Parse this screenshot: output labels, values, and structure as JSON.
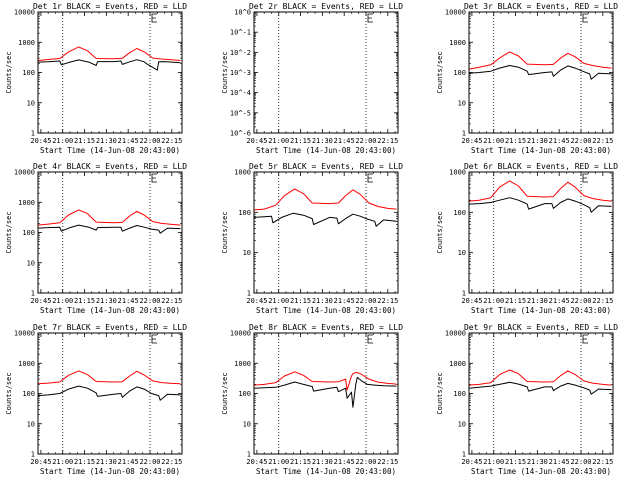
{
  "x_tick_labels": [
    "20:45",
    "21:00",
    "21:15",
    "21:30",
    "21:45",
    "22:00",
    "22:15"
  ],
  "x_axis_label": "Start Time (14-Jun-08 20:43:00)",
  "chart_data": [
    {
      "type": "line",
      "title": "Det 1r BLACK = Events, RED = LLD",
      "xlabel": "Start Time (14-Jun-08 20:43:00)",
      "ylabel": "Counts/sec",
      "yscale": "log",
      "ylim": [
        1,
        10000
      ],
      "y_tick_labels": [
        "1",
        "10",
        "100",
        "1000",
        "10000"
      ],
      "x_time_range": [
        "20:43",
        "22:22"
      ],
      "x_tick_labels": [
        "20:45",
        "21:00",
        "21:15",
        "21:30",
        "21:45",
        "22:00",
        "22:15"
      ],
      "series": [
        {
          "name": "BLACK = Events",
          "color": "#000000",
          "x": [
            "20:43",
            "20:50",
            "20:58",
            "20:59",
            "21:05",
            "21:11",
            "21:18",
            "21:23",
            "21:24",
            "21:35",
            "21:40",
            "21:41",
            "21:46",
            "21:51",
            "21:56",
            "21:58",
            "22:05",
            "22:06",
            "22:10",
            "22:15",
            "22:21"
          ],
          "y": [
            220,
            225,
            240,
            180,
            220,
            260,
            220,
            170,
            230,
            230,
            240,
            185,
            225,
            265,
            225,
            190,
            120,
            225,
            230,
            220,
            210
          ]
        },
        {
          "name": "RED = LLD",
          "color": "#ff0000",
          "x": [
            "20:43",
            "20:50",
            "20:58",
            "21:04",
            "21:11",
            "21:17",
            "21:23",
            "21:35",
            "21:41",
            "21:46",
            "21:51",
            "21:56",
            "22:02",
            "22:08",
            "22:15",
            "22:21"
          ],
          "y": [
            250,
            270,
            290,
            480,
            700,
            520,
            290,
            285,
            295,
            450,
            620,
            480,
            300,
            280,
            265,
            250
          ]
        }
      ]
    },
    {
      "type": "line",
      "title": "Det 2r BLACK = Events, RED = LLD",
      "xlabel": "Start Time (14-Jun-08 20:43:00)",
      "ylabel": "Counts/sec",
      "yscale": "log",
      "ylim": [
        1e-06,
        1
      ],
      "y_tick_labels": [
        "10^-6",
        "10^-5",
        "10^-4",
        "10^-3",
        "10^-2",
        "10^-1",
        "10^0"
      ],
      "x_time_range": [
        "20:43",
        "22:22"
      ],
      "x_tick_labels": [
        "20:45",
        "21:00",
        "21:15",
        "21:30",
        "21:45",
        "22:00",
        "22:15"
      ],
      "series": []
    },
    {
      "type": "line",
      "title": "Det 3r BLACK = Events, RED = LLD",
      "xlabel": "Start Time (14-Jun-08 20:43:00)",
      "ylabel": "Counts/sec",
      "yscale": "log",
      "ylim": [
        1,
        10000
      ],
      "y_tick_labels": [
        "1",
        "10",
        "100",
        "1000",
        "10000"
      ],
      "x_time_range": [
        "20:43",
        "22:22"
      ],
      "x_tick_labels": [
        "20:45",
        "21:00",
        "21:15",
        "21:30",
        "21:45",
        "22:00",
        "22:15"
      ],
      "series": [
        {
          "name": "BLACK = Events",
          "color": "#000000",
          "x": [
            "20:43",
            "20:50",
            "20:58",
            "21:04",
            "21:11",
            "21:17",
            "21:23",
            "21:24",
            "21:35",
            "21:40",
            "21:41",
            "21:46",
            "21:51",
            "21:56",
            "22:01",
            "22:06",
            "22:07",
            "22:12",
            "22:21"
          ],
          "y": [
            95,
            100,
            110,
            140,
            170,
            150,
            110,
            85,
            100,
            105,
            75,
            120,
            165,
            140,
            110,
            90,
            60,
            95,
            90
          ]
        },
        {
          "name": "RED = LLD",
          "color": "#ff0000",
          "x": [
            "20:43",
            "20:50",
            "20:58",
            "21:04",
            "21:11",
            "21:17",
            "21:23",
            "21:35",
            "21:41",
            "21:46",
            "21:51",
            "21:56",
            "22:02",
            "22:08",
            "22:15",
            "22:21"
          ],
          "y": [
            130,
            150,
            180,
            300,
            480,
            350,
            190,
            180,
            185,
            300,
            430,
            330,
            200,
            170,
            150,
            140
          ]
        }
      ]
    },
    {
      "type": "line",
      "title": "Det 4r BLACK = Events, RED = LLD",
      "xlabel": "Start Time (14-Jun-08 20:43:00)",
      "ylabel": "Counts/sec",
      "yscale": "log",
      "ylim": [
        1,
        10000
      ],
      "y_tick_labels": [
        "1",
        "10",
        "100",
        "1000",
        "10000"
      ],
      "x_time_range": [
        "20:43",
        "22:22"
      ],
      "x_tick_labels": [
        "20:45",
        "21:00",
        "21:15",
        "21:30",
        "21:45",
        "22:00",
        "22:15"
      ],
      "series": [
        {
          "name": "BLACK = Events",
          "color": "#000000",
          "x": [
            "20:43",
            "20:50",
            "20:58",
            "20:59",
            "21:05",
            "21:11",
            "21:18",
            "21:23",
            "21:24",
            "21:35",
            "21:40",
            "21:41",
            "21:46",
            "21:51",
            "21:56",
            "22:01",
            "22:06",
            "22:07",
            "22:12",
            "22:21"
          ],
          "y": [
            140,
            145,
            150,
            110,
            145,
            175,
            150,
            120,
            145,
            150,
            150,
            110,
            140,
            170,
            150,
            130,
            120,
            95,
            140,
            135
          ]
        },
        {
          "name": "RED = LLD",
          "color": "#ff0000",
          "x": [
            "20:43",
            "20:50",
            "20:58",
            "21:04",
            "21:11",
            "21:17",
            "21:23",
            "21:35",
            "21:41",
            "21:46",
            "21:51",
            "21:56",
            "22:02",
            "22:08",
            "22:15",
            "22:21"
          ],
          "y": [
            175,
            190,
            210,
            380,
            560,
            420,
            220,
            210,
            215,
            350,
            500,
            380,
            230,
            200,
            185,
            175
          ]
        }
      ]
    },
    {
      "type": "line",
      "title": "Det 5r BLACK = Events, RED = LLD",
      "xlabel": "Start Time (14-Jun-08 20:43:00)",
      "ylabel": "Counts/sec",
      "yscale": "log",
      "ylim": [
        1,
        1000
      ],
      "y_tick_labels": [
        "1",
        "10",
        "100",
        "1000"
      ],
      "x_time_range": [
        "20:43",
        "22:22"
      ],
      "x_tick_labels": [
        "20:45",
        "21:00",
        "21:15",
        "21:30",
        "21:45",
        "22:00",
        "22:15"
      ],
      "series": [
        {
          "name": "BLACK = Events",
          "color": "#000000",
          "x": [
            "20:43",
            "20:50",
            "20:55",
            "20:56",
            "21:02",
            "21:10",
            "21:17",
            "21:23",
            "21:24",
            "21:35",
            "21:40",
            "21:41",
            "21:46",
            "21:51",
            "21:56",
            "22:01",
            "22:06",
            "22:07",
            "22:12",
            "22:21"
          ],
          "y": [
            75,
            78,
            80,
            55,
            75,
            95,
            85,
            70,
            50,
            75,
            72,
            52,
            70,
            90,
            80,
            68,
            60,
            45,
            65,
            60
          ]
        },
        {
          "name": "RED = LLD",
          "color": "#ff0000",
          "x": [
            "20:43",
            "20:50",
            "20:58",
            "21:04",
            "21:11",
            "21:17",
            "21:23",
            "21:35",
            "21:41",
            "21:46",
            "21:51",
            "21:56",
            "22:02",
            "22:08",
            "22:15",
            "22:21"
          ],
          "y": [
            115,
            120,
            150,
            260,
            380,
            290,
            170,
            165,
            170,
            260,
            360,
            280,
            170,
            140,
            125,
            120
          ]
        }
      ]
    },
    {
      "type": "line",
      "title": "Det 6r BLACK = Events, RED = LLD",
      "xlabel": "Start Time (14-Jun-08 20:43:00)",
      "ylabel": "Counts/sec",
      "yscale": "log",
      "ylim": [
        1,
        1000
      ],
      "y_tick_labels": [
        "1",
        "10",
        "100",
        "1000"
      ],
      "x_time_range": [
        "20:43",
        "22:22"
      ],
      "x_tick_labels": [
        "20:45",
        "21:00",
        "21:15",
        "21:30",
        "21:45",
        "22:00",
        "22:15"
      ],
      "series": [
        {
          "name": "BLACK = Events",
          "color": "#000000",
          "x": [
            "20:43",
            "20:50",
            "20:58",
            "21:04",
            "21:11",
            "21:17",
            "21:23",
            "21:24",
            "21:35",
            "21:40",
            "21:41",
            "21:46",
            "21:51",
            "21:56",
            "22:01",
            "22:06",
            "22:07",
            "22:12",
            "22:21"
          ],
          "y": [
            160,
            165,
            175,
            200,
            230,
            200,
            160,
            120,
            165,
            165,
            125,
            175,
            215,
            190,
            160,
            130,
            100,
            145,
            140
          ]
        },
        {
          "name": "RED = LLD",
          "color": "#ff0000",
          "x": [
            "20:43",
            "20:50",
            "20:58",
            "21:04",
            "21:11",
            "21:17",
            "21:23",
            "21:35",
            "21:41",
            "21:46",
            "21:51",
            "21:56",
            "22:02",
            "22:08",
            "22:15",
            "22:21"
          ],
          "y": [
            190,
            200,
            230,
            420,
            600,
            450,
            250,
            240,
            245,
            390,
            560,
            420,
            260,
            220,
            200,
            190
          ]
        }
      ]
    },
    {
      "type": "line",
      "title": "Det 7r BLACK = Events, RED = LLD",
      "xlabel": "Start Time (14-Jun-08 20:43:00)",
      "ylabel": "Counts/sec",
      "yscale": "log",
      "ylim": [
        1,
        10000
      ],
      "y_tick_labels": [
        "1",
        "10",
        "100",
        "1000",
        "10000"
      ],
      "x_time_range": [
        "20:43",
        "22:22"
      ],
      "x_tick_labels": [
        "20:45",
        "21:00",
        "21:15",
        "21:30",
        "21:45",
        "22:00",
        "22:15"
      ],
      "series": [
        {
          "name": "BLACK = Events",
          "color": "#000000",
          "x": [
            "20:43",
            "20:50",
            "20:58",
            "21:04",
            "21:11",
            "21:17",
            "21:23",
            "21:24",
            "21:35",
            "21:40",
            "21:41",
            "21:46",
            "21:51",
            "21:56",
            "22:01",
            "22:06",
            "22:07",
            "22:12",
            "22:21"
          ],
          "y": [
            85,
            90,
            100,
            140,
            175,
            150,
            105,
            80,
            95,
            100,
            75,
            120,
            165,
            140,
            100,
            85,
            60,
            95,
            90
          ]
        },
        {
          "name": "RED = LLD",
          "color": "#ff0000",
          "x": [
            "20:43",
            "20:50",
            "20:58",
            "21:04",
            "21:11",
            "21:17",
            "21:23",
            "21:35",
            "21:41",
            "21:46",
            "21:51",
            "21:56",
            "22:02",
            "22:08",
            "22:15",
            "22:21"
          ],
          "y": [
            210,
            220,
            240,
            400,
            560,
            420,
            250,
            240,
            245,
            380,
            540,
            410,
            260,
            230,
            215,
            210
          ]
        }
      ]
    },
    {
      "type": "line",
      "title": "Det 8r BLACK = Events, RED = LLD",
      "xlabel": "Start Time (14-Jun-08 20:43:00)",
      "ylabel": "Counts/sec",
      "yscale": "log",
      "ylim": [
        1,
        10000
      ],
      "y_tick_labels": [
        "1",
        "10",
        "100",
        "1000",
        "10000"
      ],
      "x_time_range": [
        "20:43",
        "22:22"
      ],
      "x_tick_labels": [
        "20:45",
        "21:00",
        "21:15",
        "21:30",
        "21:45",
        "22:00",
        "22:15"
      ],
      "series": [
        {
          "name": "BLACK = Events",
          "color": "#000000",
          "x": [
            "20:43",
            "20:50",
            "20:58",
            "21:04",
            "21:11",
            "21:17",
            "21:23",
            "21:24",
            "21:35",
            "21:40",
            "21:41",
            "21:46",
            "21:47",
            "21:50",
            "21:51",
            "21:53",
            "21:54",
            "21:57",
            "22:01",
            "22:06",
            "22:12",
            "22:21"
          ],
          "y": [
            150,
            155,
            160,
            190,
            240,
            200,
            170,
            120,
            150,
            160,
            115,
            150,
            70,
            110,
            35,
            200,
            340,
            260,
            200,
            190,
            180,
            175
          ]
        },
        {
          "name": "RED = LLD",
          "color": "#ff0000",
          "x": [
            "20:43",
            "20:50",
            "20:58",
            "21:04",
            "21:11",
            "21:17",
            "21:23",
            "21:35",
            "21:41",
            "21:46",
            "21:47",
            "21:50",
            "21:51",
            "21:53",
            "21:56",
            "22:02",
            "22:08",
            "22:15",
            "22:21"
          ],
          "y": [
            190,
            200,
            230,
            380,
            520,
            400,
            250,
            240,
            245,
            300,
            130,
            380,
            450,
            500,
            460,
            300,
            240,
            215,
            205
          ]
        }
      ]
    },
    {
      "type": "line",
      "title": "Det 9r BLACK = Events, RED = LLD",
      "xlabel": "Start Time (14-Jun-08 20:43:00)",
      "ylabel": "Counts/sec",
      "yscale": "log",
      "ylim": [
        1,
        10000
      ],
      "y_tick_labels": [
        "1",
        "10",
        "100",
        "1000",
        "10000"
      ],
      "x_time_range": [
        "20:43",
        "22:22"
      ],
      "x_tick_labels": [
        "20:45",
        "21:00",
        "21:15",
        "21:30",
        "21:45",
        "22:00",
        "22:15"
      ],
      "series": [
        {
          "name": "BLACK = Events",
          "color": "#000000",
          "x": [
            "20:43",
            "20:50",
            "20:58",
            "21:04",
            "21:11",
            "21:17",
            "21:23",
            "21:24",
            "21:35",
            "21:40",
            "21:41",
            "21:46",
            "21:51",
            "21:56",
            "22:01",
            "22:06",
            "22:07",
            "22:12",
            "22:21"
          ],
          "y": [
            150,
            160,
            175,
            200,
            235,
            205,
            165,
            120,
            165,
            165,
            125,
            175,
            215,
            190,
            160,
            130,
            95,
            140,
            135
          ]
        },
        {
          "name": "RED = LLD",
          "color": "#ff0000",
          "x": [
            "20:43",
            "20:50",
            "20:58",
            "21:04",
            "21:11",
            "21:17",
            "21:23",
            "21:35",
            "21:41",
            "21:46",
            "21:51",
            "21:56",
            "22:02",
            "22:08",
            "22:15",
            "22:21"
          ],
          "y": [
            190,
            200,
            230,
            420,
            600,
            450,
            250,
            240,
            245,
            390,
            560,
            420,
            260,
            220,
            200,
            190
          ]
        }
      ]
    }
  ]
}
